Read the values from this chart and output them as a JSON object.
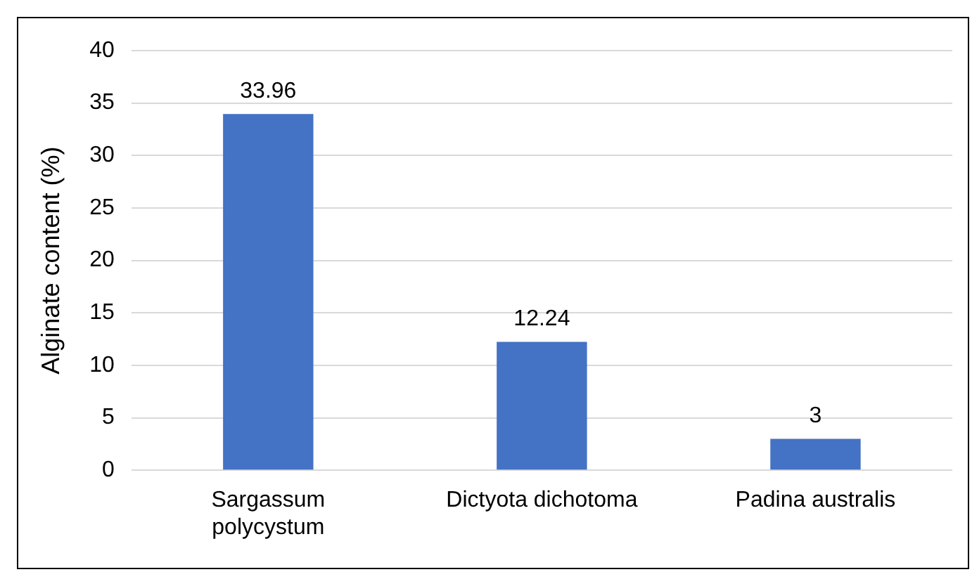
{
  "chart_data": {
    "type": "bar",
    "ylabel": "Alginate content (%)",
    "categories": [
      "Sargassum polycystum",
      "Dictyota dichotoma",
      "Padina australis"
    ],
    "values": [
      33.96,
      12.24,
      3
    ],
    "color": "#4472c4",
    "ylim": [
      0,
      40
    ],
    "yticks": [
      0,
      5,
      10,
      15,
      20,
      25,
      30,
      35,
      40
    ],
    "grid": "y",
    "data_labels": true,
    "legend": false
  }
}
